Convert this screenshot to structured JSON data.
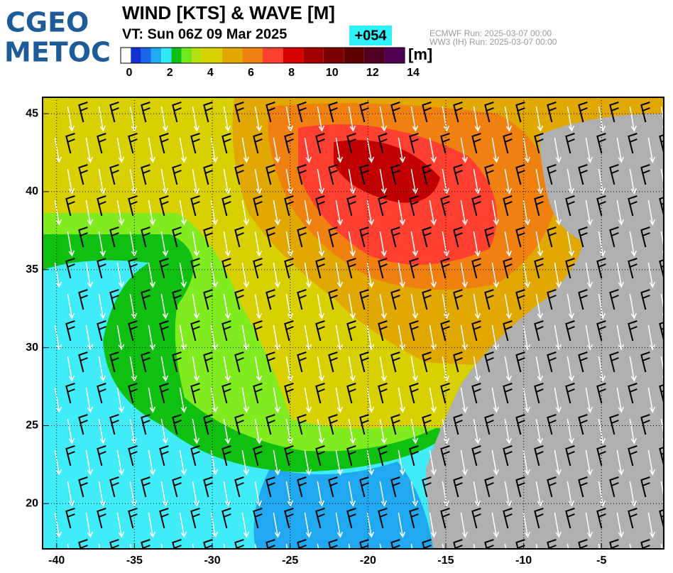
{
  "header": {
    "logo": [
      "CGEO",
      "METOC"
    ],
    "title": "WIND [KTS] & WAVE [M]",
    "valid_time": "VT: Sun 06Z 09 Mar 2025",
    "forecast_hour": "+054",
    "runs": [
      "ECMWF    Run: 2025-03-07 00:00",
      "WW3 (IH) Run: 2025-03-07 00:00"
    ]
  },
  "colorbar": {
    "unit": "[m]",
    "lim": [
      0,
      14
    ],
    "ticks": [
      0,
      2,
      4,
      6,
      8,
      10,
      12,
      14
    ],
    "bounds": [
      0,
      0.5,
      1,
      1.5,
      2,
      2.5,
      3,
      3.5,
      4,
      5,
      6,
      7,
      8,
      9,
      10,
      11,
      12,
      13,
      14
    ],
    "colors": [
      "#ffffff",
      "#1030d0",
      "#1868e8",
      "#20a8f0",
      "#30e8f8",
      "#10c010",
      "#70e820",
      "#b8e010",
      "#d8d000",
      "#e0a800",
      "#f08010",
      "#ff4030",
      "#d80000",
      "#a00000",
      "#780000",
      "#600000",
      "#500020",
      "#500050"
    ]
  },
  "map": {
    "xlim": [
      -40.9,
      -1
    ],
    "ylim": [
      17.1,
      46.05
    ],
    "xticks": [
      -40,
      -35,
      -30,
      -25,
      -20,
      -15,
      -10,
      -5
    ],
    "yticks": [
      20,
      25,
      30,
      35,
      40,
      45
    ]
  }
}
